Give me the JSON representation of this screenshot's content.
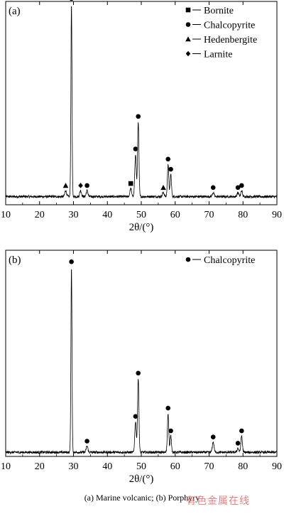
{
  "caption": "(a) Marine volcanic; (b) Porphyry",
  "watermark": "有色金属在线",
  "chart_data": [
    {
      "type": "line",
      "panel_label": "(a)",
      "xlabel": "2θ/(°)",
      "xlim": [
        10,
        90
      ],
      "xticks": [
        10,
        20,
        30,
        40,
        50,
        60,
        70,
        80,
        90
      ],
      "ylim": [
        0,
        1.0
      ],
      "grid": false,
      "legend_position": "top-right",
      "legend": [
        {
          "marker": "square",
          "label": "Bornite"
        },
        {
          "marker": "circle",
          "label": "Chalcopyrite"
        },
        {
          "marker": "triangle",
          "label": "Hedenbergite"
        },
        {
          "marker": "diamond",
          "label": "Larnite"
        }
      ],
      "baseline": 0.04,
      "peaks": [
        {
          "x": 27.7,
          "y": 0.03,
          "w": 0.25,
          "marker": "triangle"
        },
        {
          "x": 29.4,
          "y": 0.95,
          "w": 0.16,
          "marker": "circle"
        },
        {
          "x": 32.1,
          "y": 0.03,
          "w": 0.25,
          "marker": "diamond"
        },
        {
          "x": 34.0,
          "y": 0.03,
          "w": 0.25,
          "marker": "circle"
        },
        {
          "x": 46.9,
          "y": 0.04,
          "w": 0.25,
          "marker": "square"
        },
        {
          "x": 48.3,
          "y": 0.21,
          "w": 0.22,
          "marker": "circle"
        },
        {
          "x": 49.1,
          "y": 0.37,
          "w": 0.2,
          "marker": "circle"
        },
        {
          "x": 56.5,
          "y": 0.02,
          "w": 0.25,
          "marker": "triangle"
        },
        {
          "x": 57.9,
          "y": 0.16,
          "w": 0.2,
          "marker": "circle"
        },
        {
          "x": 58.7,
          "y": 0.11,
          "w": 0.2,
          "marker": "circle"
        },
        {
          "x": 71.2,
          "y": 0.02,
          "w": 0.25,
          "marker": "circle"
        },
        {
          "x": 78.5,
          "y": 0.02,
          "w": 0.25,
          "marker": "circle"
        },
        {
          "x": 79.6,
          "y": 0.03,
          "w": 0.22,
          "marker": "circle"
        }
      ]
    },
    {
      "type": "line",
      "panel_label": "(b)",
      "xlabel": "2θ/(°)",
      "xlim": [
        10,
        90
      ],
      "xticks": [
        10,
        20,
        30,
        40,
        50,
        60,
        70,
        80,
        90
      ],
      "ylim": [
        0,
        1.0
      ],
      "grid": false,
      "legend_position": "top-right",
      "legend": [
        {
          "marker": "circle",
          "label": "Chalcopyrite"
        }
      ],
      "baseline": 0.02,
      "peaks": [
        {
          "x": 29.4,
          "y": 0.9,
          "w": 0.16,
          "marker": "circle"
        },
        {
          "x": 34.0,
          "y": 0.03,
          "w": 0.25,
          "marker": "circle"
        },
        {
          "x": 48.3,
          "y": 0.15,
          "w": 0.22,
          "marker": "circle"
        },
        {
          "x": 49.1,
          "y": 0.36,
          "w": 0.2,
          "marker": "circle"
        },
        {
          "x": 57.9,
          "y": 0.19,
          "w": 0.2,
          "marker": "circle"
        },
        {
          "x": 58.7,
          "y": 0.08,
          "w": 0.2,
          "marker": "circle"
        },
        {
          "x": 71.2,
          "y": 0.05,
          "w": 0.25,
          "marker": "circle"
        },
        {
          "x": 78.5,
          "y": 0.02,
          "w": 0.25,
          "marker": "circle"
        },
        {
          "x": 79.6,
          "y": 0.08,
          "w": 0.22,
          "marker": "circle"
        }
      ]
    }
  ]
}
